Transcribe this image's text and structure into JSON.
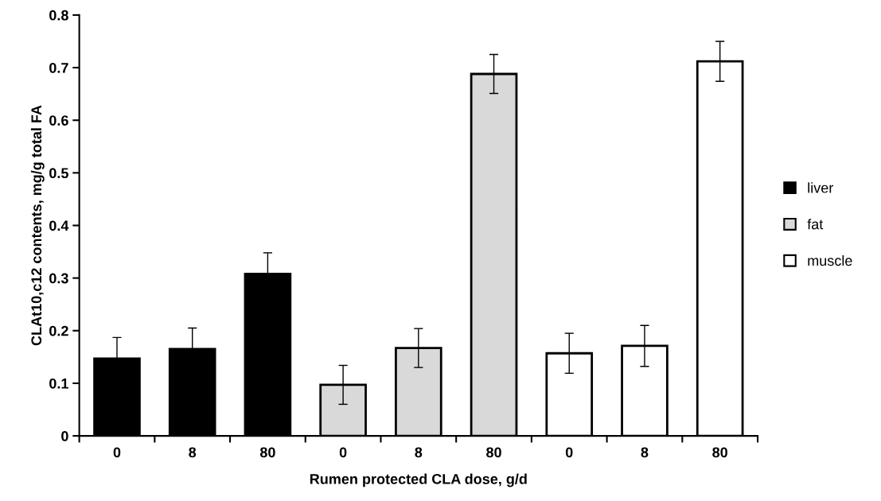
{
  "chart_data": {
    "type": "bar",
    "xlabel": "Rumen protected CLA dose, g/d",
    "ylabel": "CLAt10,c12 contents, mg/g total FA",
    "categories": [
      "0",
      "8",
      "80",
      "0",
      "8",
      "80",
      "0",
      "8",
      "80"
    ],
    "series": [
      {
        "name": "liver",
        "color": "#000000",
        "values": [
          0.147,
          0.165,
          0.308,
          null,
          null,
          null,
          null,
          null,
          null
        ],
        "errors": [
          0.04,
          0.04,
          0.04,
          null,
          null,
          null,
          null,
          null,
          null
        ]
      },
      {
        "name": "fat",
        "color": "#d9d9d9",
        "values": [
          null,
          null,
          null,
          0.097,
          0.167,
          0.688,
          null,
          null,
          null
        ],
        "errors": [
          null,
          null,
          null,
          0.037,
          0.037,
          0.037,
          null,
          null,
          null
        ]
      },
      {
        "name": "muscle",
        "color": "#ffffff",
        "values": [
          null,
          null,
          null,
          null,
          null,
          null,
          0.157,
          0.171,
          0.712
        ],
        "errors": [
          null,
          null,
          null,
          null,
          null,
          null,
          0.038,
          0.039,
          0.038
        ]
      }
    ],
    "ylim": [
      0,
      0.8
    ],
    "yticks": [
      0,
      0.1,
      0.2,
      0.3,
      0.4,
      0.5,
      0.6,
      0.7,
      0.8
    ],
    "legend": "right",
    "grid": false
  }
}
